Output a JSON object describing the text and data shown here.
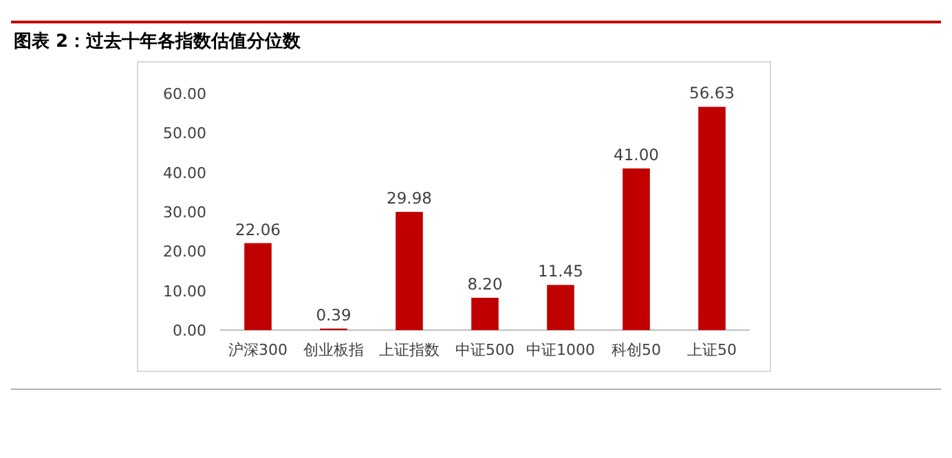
{
  "chart_data": {
    "type": "bar",
    "title": "图表 2：过去十年各指数估值分位数",
    "categories": [
      "沪深300",
      "创业板指",
      "上证指数",
      "中证500",
      "中证1000",
      "科创50",
      "上证50"
    ],
    "values": [
      22.06,
      0.39,
      29.98,
      8.2,
      11.45,
      41.0,
      56.63
    ],
    "value_labels": [
      "22.06",
      "0.39",
      "29.98",
      "8.20",
      "11.45",
      "41.00",
      "56.63"
    ],
    "color": "#c00000",
    "grid": false,
    "ylim": [
      0,
      60
    ],
    "yticks": [
      {
        "value": 0,
        "label": "0.00"
      },
      {
        "value": 10,
        "label": "10.00"
      },
      {
        "value": 20,
        "label": "20.00"
      },
      {
        "value": 30,
        "label": "30.00"
      },
      {
        "value": 40,
        "label": "40.00"
      },
      {
        "value": 50,
        "label": "50.00"
      },
      {
        "value": 60,
        "label": "60.00"
      }
    ]
  }
}
